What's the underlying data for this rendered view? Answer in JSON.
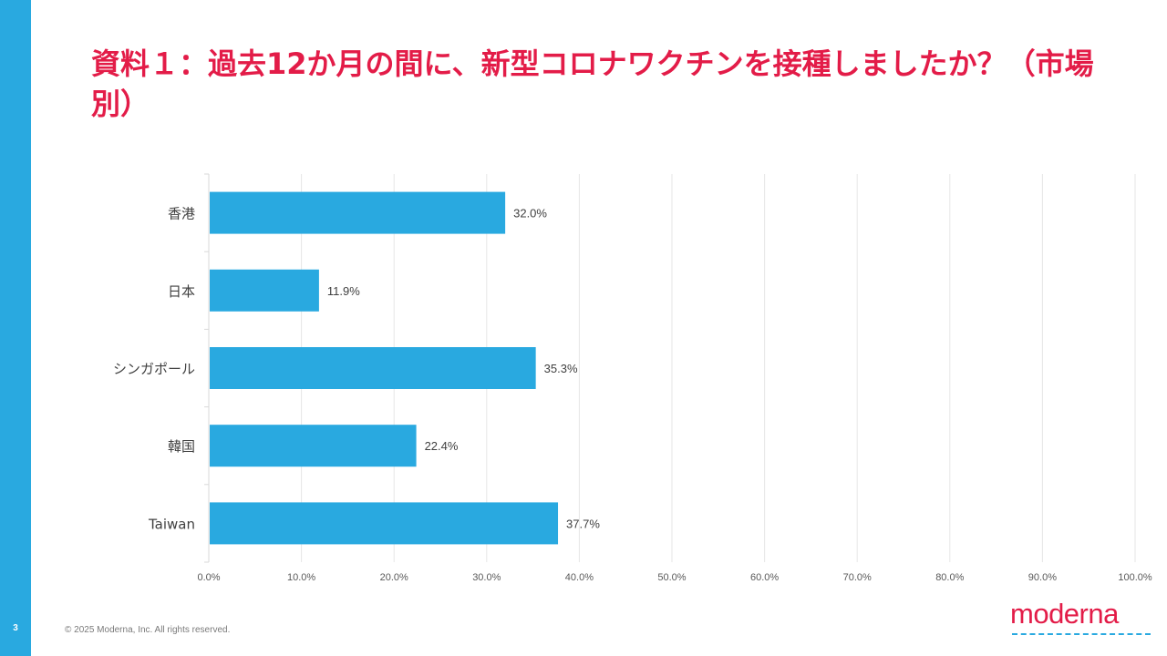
{
  "slide": {
    "page_number": "3",
    "title": "資料１：過去12か月の間に、新型コロナワクチンを接種しましたか？（市場別）",
    "footer": "© 2025 Moderna, Inc. All rights reserved.",
    "logo_text": "moderna"
  },
  "colors": {
    "accent": "#29a9e0",
    "title": "#e31c48",
    "bar": "#29a9e0"
  },
  "chart_data": {
    "type": "bar",
    "orientation": "horizontal",
    "categories": [
      "香港",
      "日本",
      "シンガポール",
      "韓国",
      "Taiwan"
    ],
    "values": [
      32.0,
      11.9,
      35.3,
      22.4,
      37.7
    ],
    "data_labels": [
      "32.0%",
      "11.9%",
      "35.3%",
      "22.4%",
      "37.7%"
    ],
    "xlim": [
      0,
      100
    ],
    "x_ticks": [
      0,
      10,
      20,
      30,
      40,
      50,
      60,
      70,
      80,
      90,
      100
    ],
    "x_tick_labels": [
      "0.0%",
      "10.0%",
      "20.0%",
      "30.0%",
      "40.0%",
      "50.0%",
      "60.0%",
      "70.0%",
      "80.0%",
      "90.0%",
      "100.0%"
    ],
    "grid": true,
    "legend": "none"
  }
}
